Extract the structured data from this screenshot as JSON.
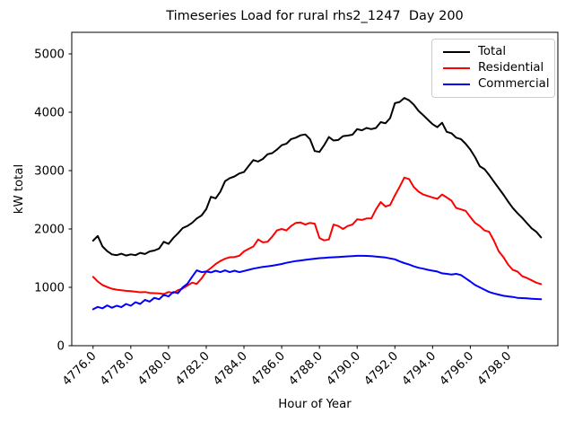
{
  "title": "Timeseries Load for rural rhs2_1247  Day 200",
  "xlabel": "Hour of Year",
  "ylabel": "kW total",
  "chart_data": {
    "type": "line",
    "title": "Timeseries Load for rural rhs2_1247  Day 200",
    "xlabel": "Hour of Year",
    "ylabel": "kW total",
    "grid": false,
    "legend_position": "upper right",
    "xlim": [
      4774.87,
      4800.64
    ],
    "ylim": [
      0,
      5369
    ],
    "xticks": [
      4776,
      4778,
      4780,
      4782,
      4784,
      4786,
      4788,
      4790,
      4792,
      4794,
      4796,
      4798
    ],
    "xtick_labels": [
      "4776.0",
      "4778.0",
      "4780.0",
      "4782.0",
      "4784.0",
      "4786.0",
      "4788.0",
      "4790.0",
      "4792.0",
      "4794.0",
      "4796.0",
      "4798.0"
    ],
    "yticks": [
      0,
      1000,
      2000,
      3000,
      4000,
      5000
    ],
    "ytick_labels": [
      "0",
      "1000",
      "2000",
      "3000",
      "4000",
      "5000"
    ],
    "x_start": 4776.0,
    "x_step": 0.25,
    "series": [
      {
        "id": "total",
        "label": "Total",
        "color": "#000000",
        "values": [
          1800,
          1880,
          1700,
          1620,
          1565,
          1550,
          1575,
          1545,
          1565,
          1550,
          1590,
          1570,
          1615,
          1630,
          1665,
          1780,
          1745,
          1845,
          1925,
          2015,
          2050,
          2105,
          2180,
          2230,
          2340,
          2550,
          2525,
          2640,
          2820,
          2870,
          2900,
          2950,
          2975,
          3080,
          3180,
          3155,
          3200,
          3280,
          3300,
          3360,
          3435,
          3460,
          3540,
          3565,
          3605,
          3620,
          3540,
          3335,
          3320,
          3435,
          3575,
          3515,
          3525,
          3590,
          3600,
          3615,
          3710,
          3690,
          3730,
          3710,
          3730,
          3830,
          3810,
          3900,
          4155,
          4175,
          4245,
          4205,
          4130,
          4025,
          3950,
          3870,
          3795,
          3745,
          3820,
          3665,
          3640,
          3565,
          3540,
          3460,
          3360,
          3230,
          3075,
          3025,
          2925,
          2810,
          2700,
          2590,
          2470,
          2360,
          2270,
          2190,
          2100,
          2010,
          1950,
          1855
        ]
      },
      {
        "id": "residential",
        "label": "Residential",
        "color": "#ff0000",
        "values": [
          1180,
          1100,
          1040,
          1005,
          975,
          960,
          950,
          940,
          935,
          925,
          915,
          920,
          905,
          900,
          895,
          885,
          920,
          905,
          950,
          980,
          1030,
          1080,
          1060,
          1150,
          1270,
          1330,
          1400,
          1450,
          1490,
          1515,
          1520,
          1540,
          1615,
          1660,
          1700,
          1820,
          1770,
          1780,
          1870,
          1975,
          2000,
          1975,
          2050,
          2105,
          2110,
          2075,
          2105,
          2090,
          1845,
          1805,
          1820,
          2075,
          2050,
          2000,
          2050,
          2075,
          2165,
          2155,
          2180,
          2180,
          2335,
          2460,
          2385,
          2410,
          2575,
          2720,
          2880,
          2855,
          2720,
          2640,
          2590,
          2565,
          2540,
          2515,
          2590,
          2540,
          2485,
          2360,
          2335,
          2310,
          2205,
          2105,
          2050,
          1975,
          1950,
          1800,
          1620,
          1520,
          1390,
          1300,
          1270,
          1190,
          1160,
          1120,
          1080,
          1055
        ]
      },
      {
        "id": "commercial",
        "label": "Commercial",
        "color": "#0000ff",
        "values": [
          625,
          665,
          640,
          690,
          650,
          685,
          660,
          715,
          685,
          745,
          715,
          785,
          755,
          820,
          795,
          870,
          845,
          920,
          900,
          1000,
          1060,
          1180,
          1290,
          1260,
          1270,
          1255,
          1285,
          1260,
          1290,
          1260,
          1285,
          1260,
          1280,
          1300,
          1320,
          1335,
          1350,
          1360,
          1370,
          1385,
          1400,
          1420,
          1435,
          1450,
          1460,
          1470,
          1480,
          1490,
          1500,
          1505,
          1510,
          1515,
          1520,
          1525,
          1530,
          1535,
          1540,
          1540,
          1538,
          1535,
          1528,
          1520,
          1510,
          1495,
          1480,
          1445,
          1415,
          1390,
          1360,
          1335,
          1320,
          1300,
          1285,
          1270,
          1240,
          1230,
          1220,
          1230,
          1210,
          1155,
          1100,
          1040,
          1000,
          960,
          920,
          895,
          875,
          855,
          845,
          835,
          820,
          815,
          810,
          805,
          800,
          795
        ]
      }
    ]
  }
}
